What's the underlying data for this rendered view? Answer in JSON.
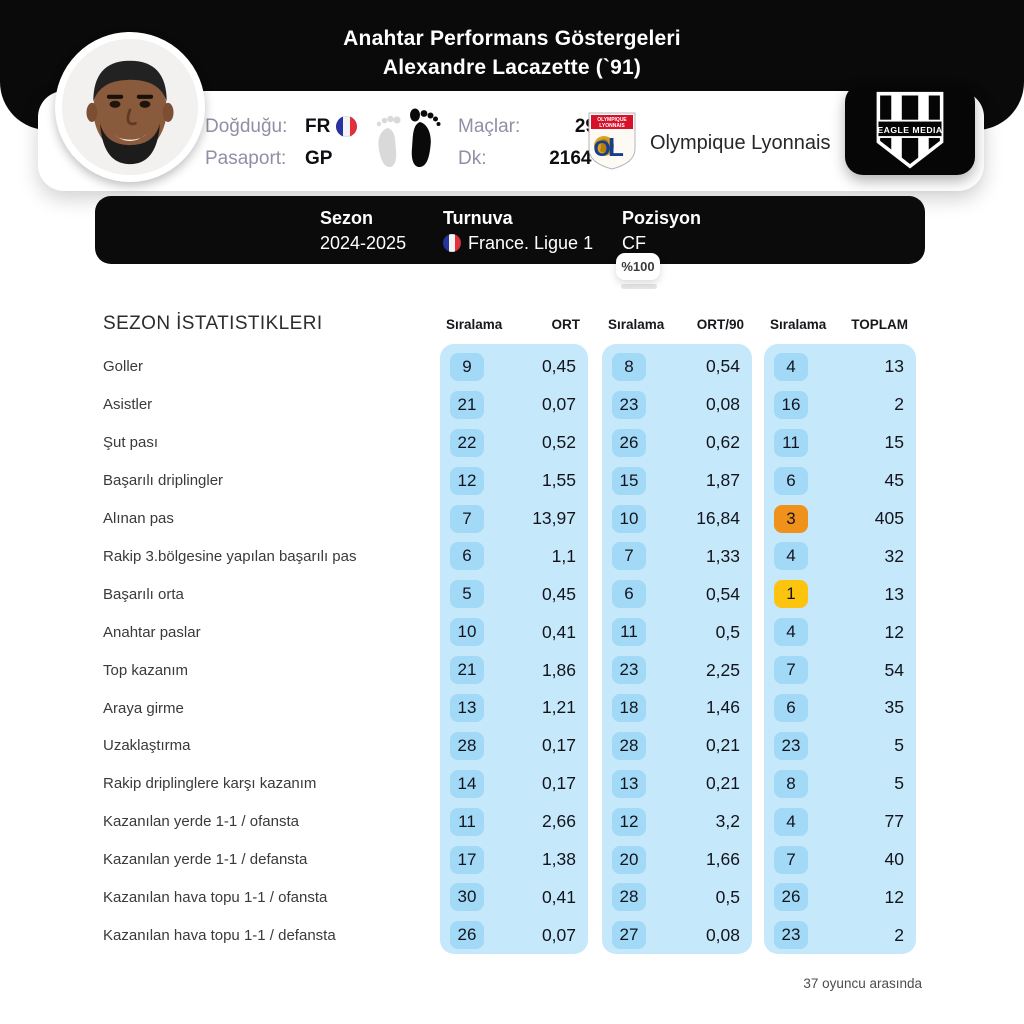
{
  "header": {
    "title_line1": "Anahtar Performans Göstergeleri",
    "title_line2": "Alexandre Lacazette (`91)"
  },
  "player_card": {
    "birth_label": "Doğduğu:",
    "birth_value": "FR",
    "passport_label": "Pasaport:",
    "passport_value": "GP",
    "matches_label": "Maçlar:",
    "matches_value": "29",
    "minutes_label": "Dk:",
    "minutes_value": "2164'",
    "club_name": "Olympique Lyonnais"
  },
  "brand": {
    "name": "EAGLE MEDIA"
  },
  "season_bar": {
    "columns": [
      {
        "label": "Sezon",
        "value": "2024-2025"
      },
      {
        "label": "Turnuva",
        "value": "France. Ligue 1"
      },
      {
        "label": "Pozisyon",
        "value": "CF"
      }
    ],
    "percent_badge": "%100"
  },
  "table": {
    "section_title": "SEZON İSTATISTIKLERI",
    "col_headers": [
      "Sıralama",
      "ORT",
      "Sıralama",
      "ORT/90",
      "Sıralama",
      "TOPLAM"
    ],
    "footer_note": "37 oyuncu arasında",
    "rows": [
      {
        "label": "Goller",
        "r1": "9",
        "v1": "0,45",
        "r2": "8",
        "v2": "0,54",
        "r3": "4",
        "v3": "13"
      },
      {
        "label": "Asistler",
        "r1": "21",
        "v1": "0,07",
        "r2": "23",
        "v2": "0,08",
        "r3": "16",
        "v3": "2"
      },
      {
        "label": "Şut pası",
        "r1": "22",
        "v1": "0,52",
        "r2": "26",
        "v2": "0,62",
        "r3": "11",
        "v3": "15"
      },
      {
        "label": "Başarılı driplingler",
        "r1": "12",
        "v1": "1,55",
        "r2": "15",
        "v2": "1,87",
        "r3": "6",
        "v3": "45"
      },
      {
        "label": "Alınan pas",
        "r1": "7",
        "v1": "13,97",
        "r2": "10",
        "v2": "16,84",
        "r3": "3",
        "v3": "405",
        "r3_highlight": "orange"
      },
      {
        "label": "Rakip 3.bölgesine yapılan başarılı pas",
        "r1": "6",
        "v1": "1,1",
        "r2": "7",
        "v2": "1,33",
        "r3": "4",
        "v3": "32"
      },
      {
        "label": "Başarılı orta",
        "r1": "5",
        "v1": "0,45",
        "r2": "6",
        "v2": "0,54",
        "r3": "1",
        "v3": "13",
        "r3_highlight": "gold"
      },
      {
        "label": "Anahtar paslar",
        "r1": "10",
        "v1": "0,41",
        "r2": "11",
        "v2": "0,5",
        "r3": "4",
        "v3": "12"
      },
      {
        "label": "Top kazanım",
        "r1": "21",
        "v1": "1,86",
        "r2": "23",
        "v2": "2,25",
        "r3": "7",
        "v3": "54"
      },
      {
        "label": "Araya girme",
        "r1": "13",
        "v1": "1,21",
        "r2": "18",
        "v2": "1,46",
        "r3": "6",
        "v3": "35"
      },
      {
        "label": "Uzaklaştırma",
        "r1": "28",
        "v1": "0,17",
        "r2": "28",
        "v2": "0,21",
        "r3": "23",
        "v3": "5"
      },
      {
        "label": "Rakip driplinglere karşı kazanım",
        "r1": "14",
        "v1": "0,17",
        "r2": "13",
        "v2": "0,21",
        "r3": "8",
        "v3": "5"
      },
      {
        "label": "Kazanılan yerde 1-1 / ofansta",
        "r1": "11",
        "v1": "2,66",
        "r2": "12",
        "v2": "3,2",
        "r3": "4",
        "v3": "77"
      },
      {
        "label": "Kazanılan yerde 1-1 / defansta",
        "r1": "17",
        "v1": "1,38",
        "r2": "20",
        "v2": "1,66",
        "r3": "7",
        "v3": "40"
      },
      {
        "label": "Kazanılan hava topu 1-1 / ofansta",
        "r1": "30",
        "v1": "0,41",
        "r2": "28",
        "v2": "0,5",
        "r3": "26",
        "v3": "12"
      },
      {
        "label": "Kazanılan hava topu 1-1 / defansta",
        "r1": "26",
        "v1": "0,07",
        "r2": "27",
        "v2": "0,08",
        "r3": "23",
        "v3": "2"
      }
    ]
  },
  "chart_data": {
    "type": "table",
    "title": "Anahtar Performans Göstergeleri - Alexandre Lacazette (`91)",
    "season": "2024-2025",
    "competition": "France. Ligue 1",
    "position": "CF",
    "position_share": "%100",
    "matches": 29,
    "minutes": 2164,
    "columns": [
      "İstatistik",
      "Sıralama (ORT)",
      "ORT",
      "Sıralama (ORT/90)",
      "ORT/90",
      "Sıralama (TOPLAM)",
      "TOPLAM"
    ],
    "rows": [
      [
        "Goller",
        9,
        0.45,
        8,
        0.54,
        4,
        13
      ],
      [
        "Asistler",
        21,
        0.07,
        23,
        0.08,
        16,
        2
      ],
      [
        "Şut pası",
        22,
        0.52,
        26,
        0.62,
        11,
        15
      ],
      [
        "Başarılı driplingler",
        12,
        1.55,
        15,
        1.87,
        6,
        45
      ],
      [
        "Alınan pas",
        7,
        13.97,
        10,
        16.84,
        3,
        405
      ],
      [
        "Rakip 3.bölgesine yapılan başarılı pas",
        6,
        1.1,
        7,
        1.33,
        4,
        32
      ],
      [
        "Başarılı orta",
        5,
        0.45,
        6,
        0.54,
        1,
        13
      ],
      [
        "Anahtar paslar",
        10,
        0.41,
        11,
        0.5,
        4,
        12
      ],
      [
        "Top kazanım",
        21,
        1.86,
        23,
        2.25,
        7,
        54
      ],
      [
        "Araya girme",
        13,
        1.21,
        18,
        1.46,
        6,
        35
      ],
      [
        "Uzaklaştırma",
        28,
        0.17,
        28,
        0.21,
        23,
        5
      ],
      [
        "Rakip driplinglere karşı kazanım",
        14,
        0.17,
        13,
        0.21,
        8,
        5
      ],
      [
        "Kazanılan yerde 1-1 / ofansta",
        11,
        2.66,
        12,
        3.2,
        4,
        77
      ],
      [
        "Kazanılan yerde 1-1 / defansta",
        17,
        1.38,
        20,
        1.66,
        7,
        40
      ],
      [
        "Kazanılan hava topu 1-1 / ofansta",
        30,
        0.41,
        28,
        0.5,
        26,
        12
      ],
      [
        "Kazanılan hava topu 1-1 / defansta",
        26,
        0.07,
        27,
        0.08,
        23,
        2
      ]
    ],
    "highlights": [
      {
        "row": "Alınan pas",
        "column": "Sıralama (TOPLAM)",
        "rank": 3,
        "color": "#f0911c"
      },
      {
        "row": "Başarılı orta",
        "column": "Sıralama (TOPLAM)",
        "rank": 1,
        "color": "#fcc30f"
      }
    ],
    "note": "37 oyuncu arasında",
    "colors": {
      "panel_blue": "#c6e8fb",
      "badge_blue": "#a1d9f7",
      "badge_orange": "#f0911c",
      "badge_gold": "#fcc30f",
      "hero_black": "#0a0a0a"
    }
  }
}
